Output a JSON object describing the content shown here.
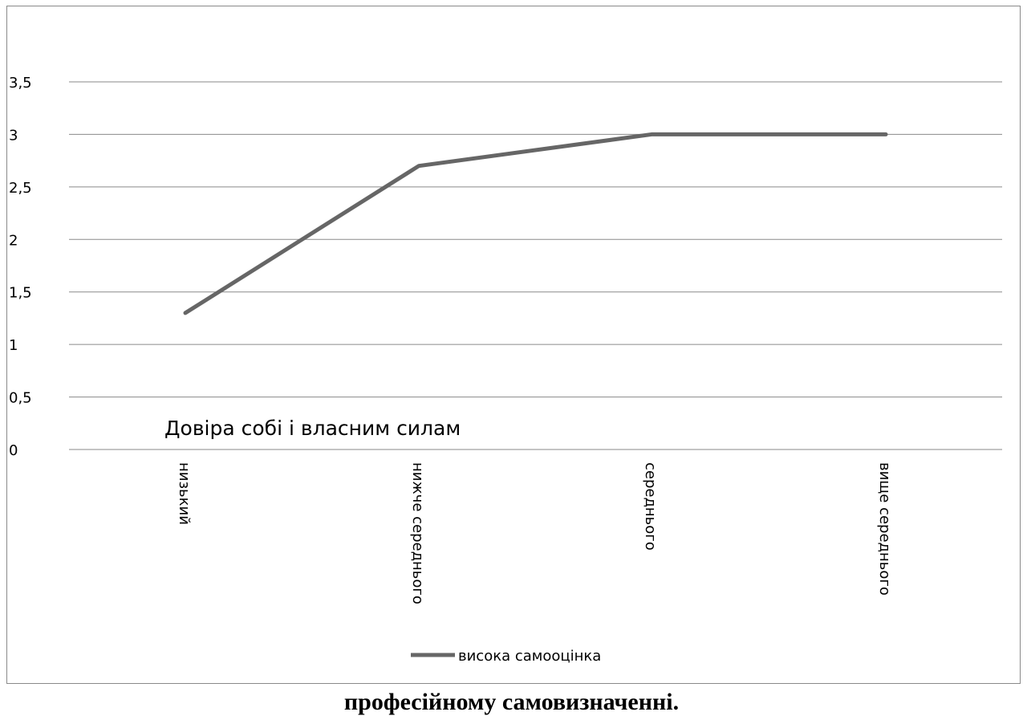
{
  "chart_data": {
    "type": "line",
    "categories": [
      "низький",
      "нижче середнього",
      "середнього",
      "вище середнього"
    ],
    "series": [
      {
        "name": "висока самооцінка",
        "values": [
          1.3,
          2.7,
          3,
          3
        ],
        "color": "#666666"
      }
    ],
    "y_ticks": [
      "0",
      "0,5",
      "1",
      "1,5",
      "2",
      "2,5",
      "3",
      "3,5"
    ],
    "ylim": [
      0,
      3.5
    ],
    "grid": true,
    "legend": "bottom",
    "annotation": "Довіра собі і власним силам",
    "gridline_color": "#8a8a8a"
  },
  "caption": "професійному самовизначенні."
}
